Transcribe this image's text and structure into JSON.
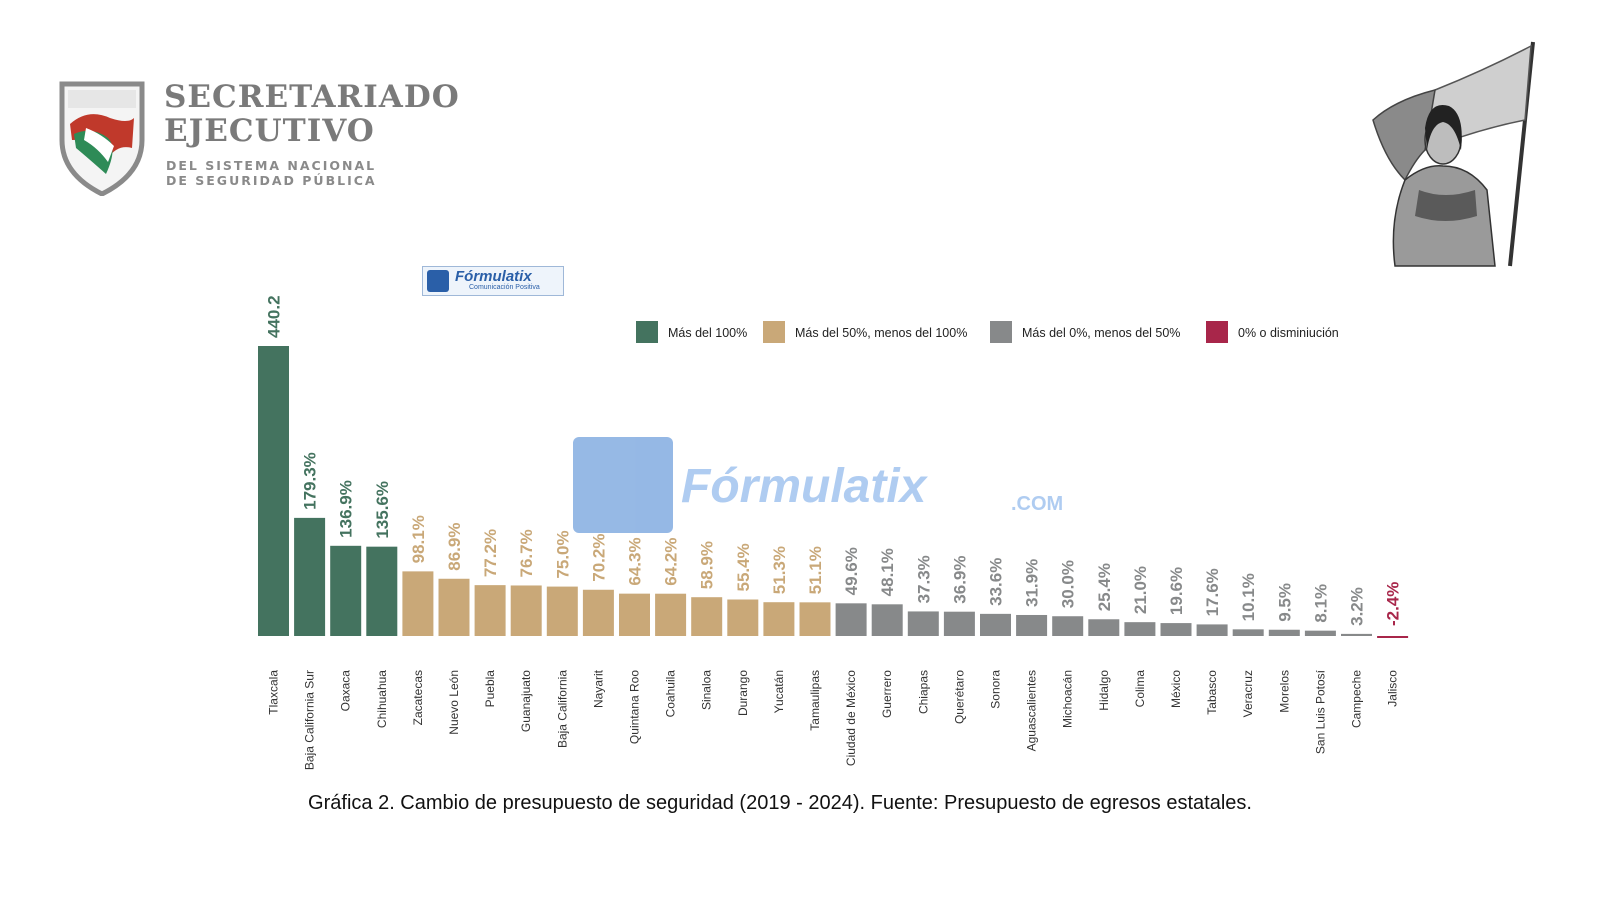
{
  "header": {
    "title_line1": "SECRETARIADO",
    "title_line2": "EJECUTIVO",
    "subtitle_line1": "DEL SISTEMA NACIONAL",
    "subtitle_line2": "DE SEGURIDAD PÚBLICA"
  },
  "brand": {
    "name": "Fórmulatix",
    "tagline": "Comunicación Positiva",
    "watermark": "Fórmulatix",
    "watermark_suffix": ".COM"
  },
  "colors": {
    "green": "#44735f",
    "gold": "#c9a878",
    "gray": "#87898a",
    "red": "#a8264a"
  },
  "chart_data": {
    "type": "bar",
    "title": "",
    "legend": [
      {
        "label": "Más del 100%",
        "color": "#44735f"
      },
      {
        "label": "Más del 50%, menos del 100%",
        "color": "#c9a878"
      },
      {
        "label": "Más del 0%, menos del 50%",
        "color": "#87898a"
      },
      {
        "label": "0% o disminiución",
        "color": "#a8264a"
      }
    ],
    "legend_position": "top-right",
    "grid": false,
    "ylim": [
      -2.4,
      440.2
    ],
    "categories": [
      "Tlaxcala",
      "Baja California Sur",
      "Oaxaca",
      "Chihuahua",
      "Zacatecas",
      "Nuevo León",
      "Puebla",
      "Guanajuato",
      "Baja California",
      "Nayarit",
      "Quintana Roo",
      "Coahuila",
      "Sinaloa",
      "Durango",
      "Yucatán",
      "Tamaulipas",
      "Ciudad de México",
      "Guerrero",
      "Chiapas",
      "Querétaro",
      "Sonora",
      "Aguascalientes",
      "Michoacán",
      "Hidalgo",
      "Colima",
      "México",
      "Tabasco",
      "Veracruz",
      "Morelos",
      "San Luis Potosí",
      "Campeche",
      "Jalisco"
    ],
    "values": [
      440.2,
      179.3,
      136.9,
      135.6,
      98.1,
      86.9,
      77.2,
      76.7,
      75.0,
      70.2,
      64.3,
      64.2,
      58.9,
      55.4,
      51.3,
      51.1,
      49.6,
      48.1,
      37.3,
      36.9,
      33.6,
      31.9,
      30.0,
      25.4,
      21.0,
      19.6,
      17.6,
      10.1,
      9.5,
      8.1,
      3.2,
      -2.4
    ],
    "labels": [
      "440.2",
      "179.3%",
      "136.9%",
      "135.6%",
      "98.1%",
      "86.9%",
      "77.2%",
      "76.7%",
      "75.0%",
      "70.2%",
      "64.3%",
      "64.2%",
      "58.9%",
      "55.4%",
      "51.3%",
      "51.1%",
      "49.6%",
      "48.1%",
      "37.3%",
      "36.9%",
      "33.6%",
      "31.9%",
      "30.0%",
      "25.4%",
      "21.0%",
      "19.6%",
      "17.6%",
      "10.1%",
      "9.5%",
      "8.1%",
      "3.2%",
      "-2.4%"
    ]
  },
  "caption": "Gráfica 2. Cambio de presupuesto de seguridad (2019 - 2024). Fuente: Presupuesto de egresos estatales."
}
